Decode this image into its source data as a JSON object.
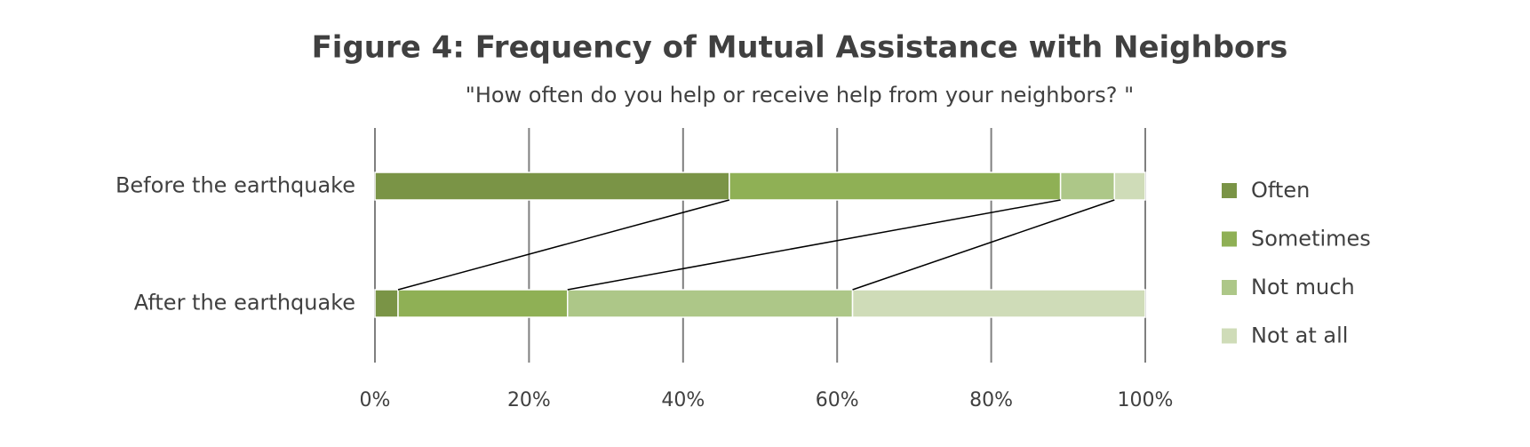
{
  "chart_data": {
    "type": "bar",
    "orientation": "horizontal",
    "stacked": true,
    "title": "Figure 4: Frequency of Mutual Assistance with Neighbors",
    "subtitle": "\"How often do you help or receive help from your neighbors? \"",
    "categories": [
      "Before the earthquake",
      "After the earthquake"
    ],
    "series": [
      {
        "name": "Often",
        "color": "#7a9446",
        "values": [
          46,
          3
        ]
      },
      {
        "name": "Sometimes",
        "color": "#8fb055",
        "values": [
          43,
          22
        ]
      },
      {
        "name": "Not much",
        "color": "#adc788",
        "values": [
          7,
          37
        ]
      },
      {
        "name": "Not at all",
        "color": "#cfdcb8",
        "values": [
          4,
          38
        ]
      }
    ],
    "xlim": [
      0,
      100
    ],
    "xticks": [
      {
        "value": 0,
        "label": "0%"
      },
      {
        "value": 20,
        "label": "20%"
      },
      {
        "value": 40,
        "label": "40%"
      },
      {
        "value": 60,
        "label": "60%"
      },
      {
        "value": 80,
        "label": "80%"
      },
      {
        "value": 100,
        "label": "100%"
      }
    ],
    "grid": true,
    "legend": "right"
  }
}
